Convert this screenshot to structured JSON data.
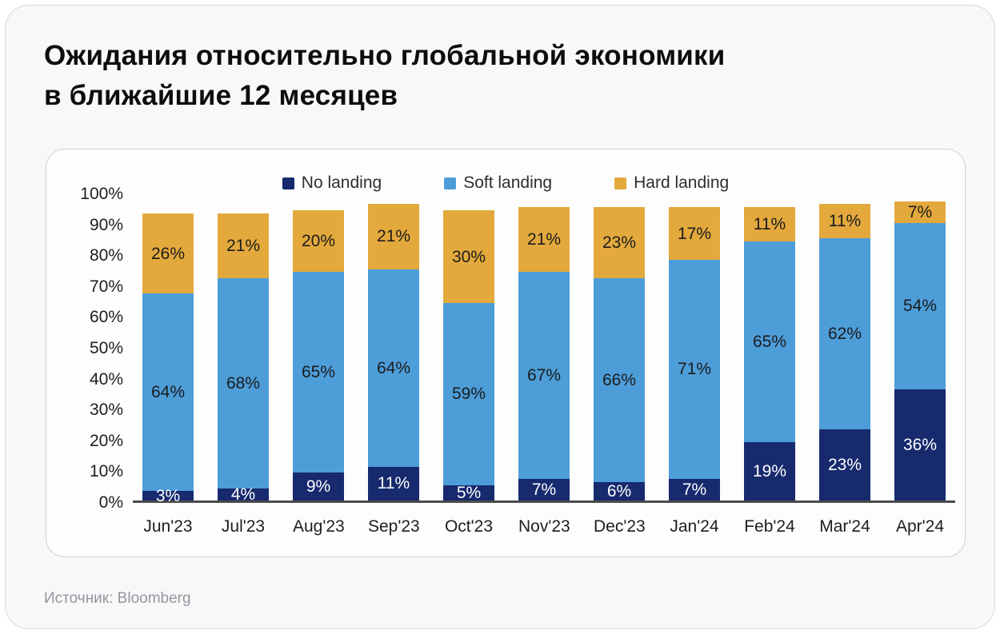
{
  "page": {
    "title_line1": "Ожидания относительно глобальной экономики",
    "title_line2": "в ближайшие 12 месяцев",
    "source_label": "Источник:",
    "source_value": "Bloomberg"
  },
  "colors": {
    "no_landing": "#172a6e",
    "soft_landing": "#4d9dd9",
    "hard_landing": "#e3a93c",
    "axis_line": "#4b4b4b"
  },
  "chart_data": {
    "type": "bar",
    "stacked": true,
    "title": "Ожидания относительно глобальной экономики в ближайшие 12 месяцев",
    "xlabel": "",
    "ylabel": "",
    "ylim": [
      0,
      100
    ],
    "grid": false,
    "legend_position": "top",
    "y_ticks": [
      "0%",
      "10%",
      "20%",
      "30%",
      "40%",
      "50%",
      "60%",
      "70%",
      "80%",
      "90%",
      "100%"
    ],
    "categories": [
      "Jun'23",
      "Jul'23",
      "Aug'23",
      "Sep'23",
      "Oct'23",
      "Nov'23",
      "Dec'23",
      "Jan'24",
      "Feb'24",
      "Mar'24",
      "Apr'24"
    ],
    "series": [
      {
        "name": "No landing",
        "color": "#172a6e",
        "label_color": "#ffffff",
        "values": [
          3,
          4,
          9,
          11,
          5,
          7,
          6,
          7,
          19,
          23,
          36
        ],
        "labels": [
          "3%",
          "4%",
          "9%",
          "11%",
          "5%",
          "7%",
          "6%",
          "7%",
          "19%",
          "23%",
          "36%"
        ]
      },
      {
        "name": "Soft landing",
        "color": "#4d9dd9",
        "label_color": "#1b1b1b",
        "values": [
          64,
          68,
          65,
          64,
          59,
          67,
          66,
          71,
          65,
          62,
          54
        ],
        "labels": [
          "64%",
          "68%",
          "65%",
          "64%",
          "59%",
          "67%",
          "66%",
          "71%",
          "65%",
          "62%",
          "54%"
        ]
      },
      {
        "name": "Hard landing",
        "color": "#e3a93c",
        "label_color": "#1b1b1b",
        "values": [
          26,
          21,
          20,
          21,
          30,
          21,
          23,
          17,
          11,
          11,
          7
        ],
        "labels": [
          "26%",
          "21%",
          "20%",
          "21%",
          "30%",
          "21%",
          "23%",
          "17%",
          "11%",
          "11%",
          "7%"
        ]
      }
    ]
  }
}
